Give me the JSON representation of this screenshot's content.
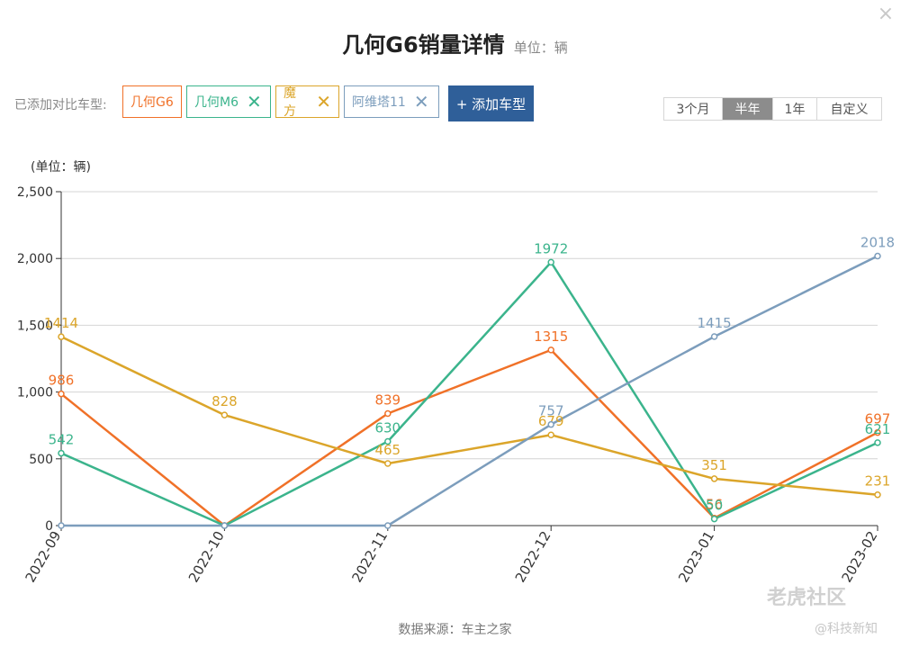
{
  "close_icon": "×",
  "header": {
    "title": "几何G6销量详情",
    "unit": "单位：辆"
  },
  "compare": {
    "label": "已添加对比车型:",
    "tags": [
      {
        "label": "几何G6",
        "color": "#f07128",
        "removable": false
      },
      {
        "label": "几何M6",
        "color": "#3bb48c",
        "removable": true
      },
      {
        "label": "魔方",
        "color": "#dba52a",
        "removable": true
      },
      {
        "label": "阿维塔11",
        "color": "#7c9dbc",
        "removable": true
      }
    ],
    "remove_icon": "✕",
    "add_button": "+ 添加车型"
  },
  "time_range": {
    "options": [
      "3个月",
      "半年",
      "1年",
      "自定义"
    ],
    "active": "半年"
  },
  "chart_data": {
    "type": "line",
    "unit_label": "(单位：辆)",
    "categories": [
      "2022-09",
      "2022-10",
      "2022-11",
      "2022-12",
      "2023-01",
      "2023-02"
    ],
    "ylim": [
      0,
      2500
    ],
    "yticks": [
      0,
      500,
      1000,
      1500,
      2000,
      2500
    ],
    "ytick_labels": [
      "0",
      "500",
      "1,000",
      "1,500",
      "2,000",
      "2,500"
    ],
    "grid": true,
    "series": [
      {
        "name": "几何G6",
        "color": "#f07128",
        "values": [
          986,
          0,
          839,
          1315,
          56,
          697
        ],
        "labels": [
          "986",
          "",
          "839",
          "1315",
          "56",
          "697"
        ]
      },
      {
        "name": "几何M6",
        "color": "#3bb48c",
        "values": [
          542,
          0,
          630,
          1972,
          50,
          621
        ],
        "labels": [
          "542",
          "",
          "630",
          "1972",
          "50",
          "621"
        ]
      },
      {
        "name": "魔方",
        "color": "#dba52a",
        "values": [
          1414,
          828,
          465,
          679,
          351,
          231
        ],
        "labels": [
          "1414",
          "828",
          "465",
          "679",
          "351",
          "231"
        ]
      },
      {
        "name": "阿维塔11",
        "color": "#7c9dbc",
        "values": [
          0,
          0,
          0,
          757,
          1415,
          2018
        ],
        "labels": [
          "",
          "",
          "",
          "757",
          "1415",
          "2018"
        ]
      }
    ]
  },
  "footer": {
    "source": "数据来源：车主之家"
  },
  "watermark": {
    "brand": "老虎社区",
    "handle": "@科技新知"
  }
}
